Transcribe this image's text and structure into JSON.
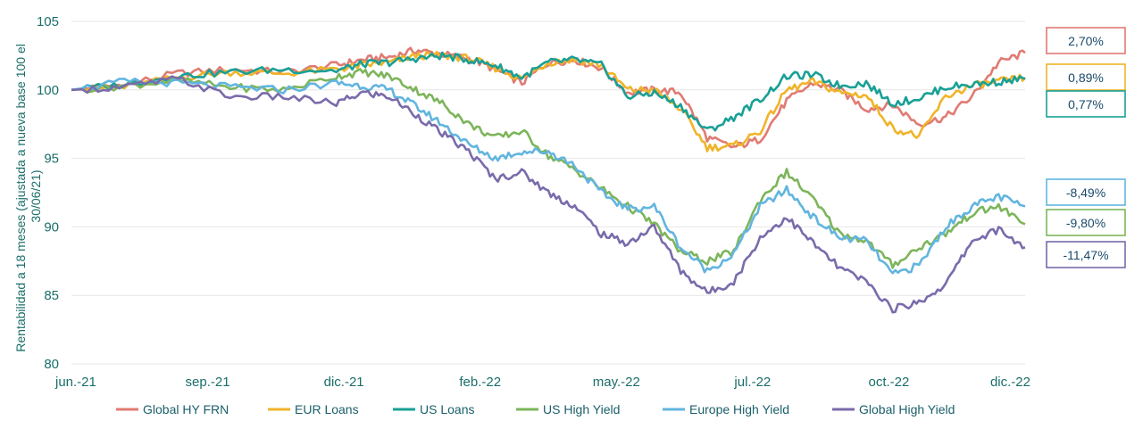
{
  "chart_data": {
    "type": "line",
    "title": "",
    "ylabel": "Rentabilidad a 18 meses (ajustada a nueva base 100 el 30/06/21)",
    "ylabel_lines": [
      "Rentabilidad a 18 meses (ajustada a nueva base 100 el",
      "30/06/21)"
    ],
    "x_ticks": [
      "jun.-21",
      "sep.-21",
      "dic.-21",
      "feb.-22",
      "may.-22",
      "jul.-22",
      "oct.-22",
      "dic.-22"
    ],
    "y_ticks": [
      "80",
      "85",
      "90",
      "95",
      "100",
      "105"
    ],
    "ylim": [
      80,
      105
    ],
    "xlim": [
      0,
      18
    ],
    "grid": "horizontal",
    "legend_position": "bottom",
    "series": [
      {
        "name": "Global HY FRN",
        "color": "#e07b73",
        "end_label": "2,70%",
        "x": [
          0,
          1,
          2,
          3,
          4,
          5,
          5.5,
          6,
          6.5,
          7,
          7.5,
          8,
          8.5,
          9,
          9.5,
          10,
          10.5,
          11,
          11.5,
          12,
          12.5,
          13,
          13.5,
          14,
          14.5,
          15,
          15.5,
          16,
          16.5,
          17,
          17.5,
          18
        ],
        "values": [
          100,
          100.4,
          101.2,
          101.5,
          101.3,
          101.8,
          102.2,
          102.4,
          102.9,
          102.6,
          102.3,
          101.5,
          100.5,
          102.0,
          102.2,
          101.6,
          99.8,
          100.0,
          99.8,
          96.5,
          95.8,
          96.4,
          99.2,
          100.5,
          100.0,
          98.6,
          98.9,
          97.5,
          98.0,
          99.5,
          102.0,
          102.7
        ]
      },
      {
        "name": "EUR Loans",
        "color": "#f0b429",
        "end_label": "0,89%",
        "x": [
          0,
          1,
          2,
          3,
          4,
          5,
          5.5,
          6,
          6.5,
          7,
          7.5,
          8,
          8.5,
          9,
          9.5,
          10,
          10.5,
          11,
          11.5,
          12,
          12.5,
          13,
          13.5,
          14,
          14.5,
          15,
          15.5,
          16,
          16.5,
          17,
          17.5,
          18
        ],
        "values": [
          100,
          100.2,
          100.9,
          101.3,
          101.2,
          101.5,
          101.8,
          102.0,
          102.5,
          102.5,
          102.3,
          101.6,
          100.8,
          102.0,
          102.2,
          101.8,
          100.0,
          100.0,
          98.6,
          95.8,
          95.9,
          97.0,
          100.0,
          100.6,
          99.8,
          99.6,
          97.2,
          96.6,
          99.5,
          100.3,
          100.6,
          100.9
        ]
      },
      {
        "name": "US Loans",
        "color": "#19a096",
        "end_label": "0,77%",
        "x": [
          0,
          1,
          2,
          3,
          4,
          5,
          5.5,
          6,
          6.5,
          7,
          7.5,
          8,
          8.5,
          9,
          9.5,
          10,
          10.5,
          11,
          11.5,
          12,
          12.5,
          13,
          13.5,
          14,
          14.5,
          15,
          15.5,
          16,
          16.5,
          17,
          17.5,
          18
        ],
        "values": [
          100,
          100.4,
          101.0,
          101.3,
          101.5,
          101.4,
          101.9,
          102.0,
          102.3,
          102.5,
          102.2,
          101.8,
          100.9,
          102.0,
          102.2,
          101.8,
          99.5,
          99.8,
          98.8,
          97.0,
          98.0,
          99.3,
          101.0,
          101.1,
          100.3,
          100.5,
          99.0,
          99.4,
          100.2,
          100.4,
          100.6,
          100.8
        ]
      },
      {
        "name": "US High Yield",
        "color": "#7db55b",
        "end_label": "-9,80%",
        "x": [
          0,
          1,
          2,
          3,
          4,
          5,
          5.5,
          6,
          6.5,
          7,
          7.5,
          8,
          8.5,
          9,
          9.5,
          10,
          10.5,
          11,
          11.5,
          12,
          12.5,
          13,
          13.5,
          14,
          14.5,
          15,
          15.5,
          16,
          16.5,
          17,
          17.5,
          18
        ],
        "values": [
          100,
          100.3,
          100.7,
          100.2,
          100.0,
          101.0,
          101.3,
          101.0,
          100.0,
          99.0,
          97.5,
          96.5,
          97.0,
          95.2,
          94.2,
          92.8,
          91.5,
          90.2,
          88.2,
          87.5,
          88.2,
          92.0,
          94.0,
          92.0,
          89.5,
          89.0,
          87.2,
          88.5,
          89.5,
          91.0,
          91.5,
          90.2
        ]
      },
      {
        "name": "Europe High Yield",
        "color": "#62b5df",
        "end_label": "-8,49%",
        "x": [
          0,
          1,
          2,
          3,
          4,
          5,
          5.5,
          6,
          6.5,
          7,
          7.5,
          8,
          8.5,
          9,
          9.5,
          10,
          10.5,
          11,
          11.5,
          12,
          12.5,
          13,
          13.5,
          14,
          14.5,
          15,
          15.5,
          16,
          16.5,
          17,
          17.5,
          18
        ],
        "values": [
          100,
          100.6,
          100.5,
          100.2,
          100.0,
          100.5,
          100.3,
          100.0,
          98.8,
          97.5,
          96.0,
          95.0,
          95.5,
          95.5,
          94.5,
          92.5,
          91.3,
          91.5,
          88.5,
          86.8,
          88.0,
          91.5,
          92.7,
          90.7,
          89.2,
          89.0,
          86.5,
          87.2,
          90.0,
          91.5,
          92.2,
          91.5
        ]
      },
      {
        "name": "Global High Yield",
        "color": "#7a6bab",
        "end_label": "-11,47%",
        "x": [
          0,
          1,
          2,
          3,
          4,
          5,
          5.5,
          6,
          6.5,
          7,
          7.5,
          8,
          8.5,
          9,
          9.5,
          10,
          10.5,
          11,
          11.5,
          12,
          12.5,
          13,
          13.5,
          14,
          14.5,
          15,
          15.5,
          16,
          16.5,
          17,
          17.5,
          18
        ],
        "values": [
          100,
          100.2,
          100.8,
          99.5,
          99.5,
          99.0,
          99.8,
          99.5,
          98.2,
          96.8,
          95.5,
          93.5,
          94.0,
          92.5,
          91.5,
          89.5,
          88.8,
          90.0,
          86.8,
          85.2,
          86.0,
          89.2,
          90.7,
          88.8,
          87.0,
          86.0,
          84.0,
          84.5,
          85.8,
          89.0,
          89.8,
          88.5
        ]
      }
    ]
  }
}
